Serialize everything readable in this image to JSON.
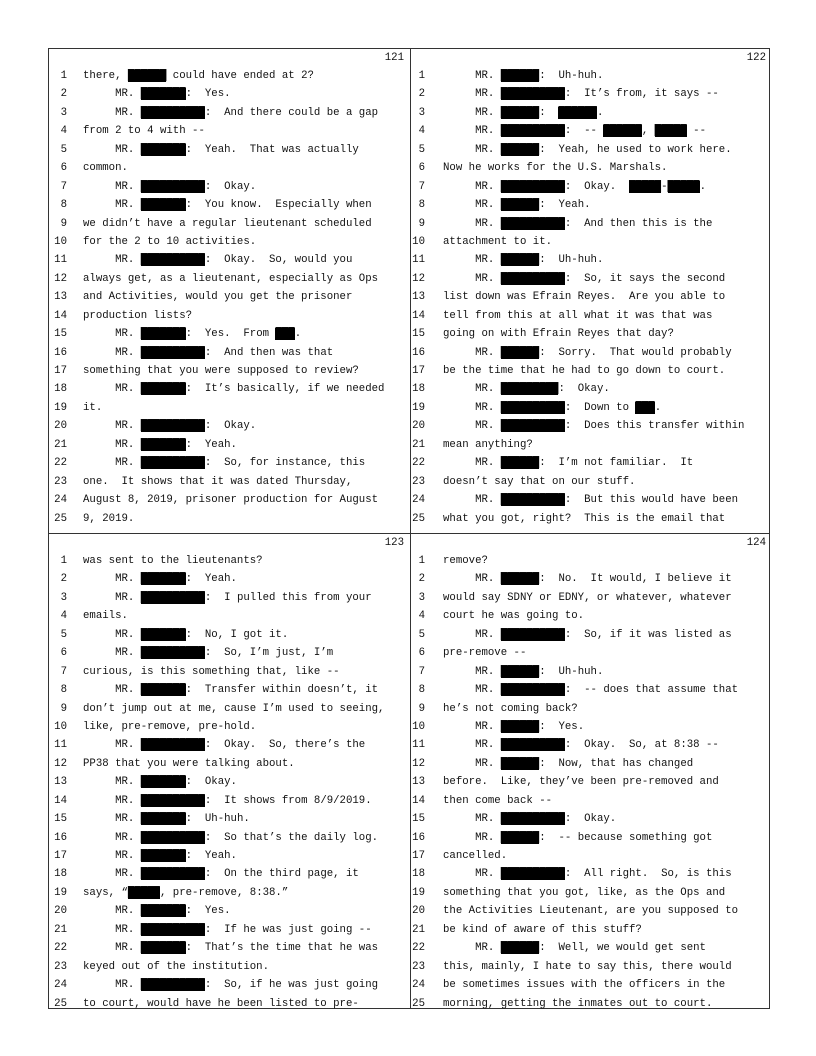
{
  "pages": [
    {
      "number": "121",
      "lines": [
        "there, ██████ could have ended at 2?",
        "     MR. ███████:  Yes.",
        "     MR. ██████████:  And there could be a gap",
        "from 2 to 4 with --",
        "     MR. ███████:  Yeah.  That was actually",
        "common.",
        "     MR. ██████████:  Okay.",
        "     MR. ███████:  You know.  Especially when",
        "we didn’t have a regular lieutenant scheduled",
        "for the 2 to 10 activities.",
        "     MR. ██████████:  Okay.  So, would you",
        "always get, as a lieutenant, especially as Ops",
        "and Activities, would you get the prisoner",
        "production lists?",
        "     MR. ███████:  Yes.  From ███.",
        "     MR. ██████████:  And then was that",
        "something that you were supposed to review?",
        "     MR. ███████:  It’s basically, if we needed",
        "it.",
        "     MR. ██████████:  Okay.",
        "     MR. ███████:  Yeah.",
        "     MR. ██████████:  So, for instance, this",
        "one.  It shows that it was dated Thursday,",
        "August 8, 2019, prisoner production for August",
        "9, 2019."
      ]
    },
    {
      "number": "122",
      "lines": [
        "     MR. ██████:  Uh-huh.",
        "     MR. ██████████:  It’s from, it says --",
        "     MR. ██████:  ██████.",
        "     MR. ██████████:  -- ██████, █████ --",
        "     MR. ██████:  Yeah, he used to work here.",
        "Now he works for the U.S. Marshals.",
        "     MR. ██████████:  Okay.  █████-█████.",
        "     MR. ██████:  Yeah.",
        "     MR. ██████████:  And then this is the",
        "attachment to it.",
        "     MR. ██████:  Uh-huh.",
        "     MR. ██████████:  So, it says the second",
        "list down was Efrain Reyes.  Are you able to",
        "tell from this at all what it was that was",
        "going on with Efrain Reyes that day?",
        "     MR. ██████:  Sorry.  That would probably",
        "be the time that he had to go down to court.",
        "     MR. █████████:  Okay.",
        "     MR. ██████████:  Down to ███.",
        "     MR. ██████████:  Does this transfer within",
        "mean anything?",
        "     MR. ██████:  I’m not familiar.  It",
        "doesn’t say that on our stuff.",
        "     MR. ██████████:  But this would have been",
        "what you got, right?  This is the email that"
      ]
    },
    {
      "number": "123",
      "lines": [
        "was sent to the lieutenants?",
        "     MR. ███████:  Yeah.",
        "     MR. ██████████:  I pulled this from your",
        "emails.",
        "     MR. ███████:  No, I got it.",
        "     MR. ██████████:  So, I’m just, I’m",
        "curious, is this something that, like --",
        "     MR. ███████:  Transfer within doesn’t, it",
        "don’t jump out at me, cause I’m used to seeing,",
        "like, pre-remove, pre-hold.",
        "     MR. ██████████:  Okay.  So, there’s the",
        "PP38 that you were talking about.",
        "     MR. ███████:  Okay.",
        "     MR. ██████████:  It shows from 8/9/2019.",
        "     MR. ███████:  Uh-huh.",
        "     MR. ██████████:  So that’s the daily log.",
        "     MR. ███████:  Yeah.",
        "     MR. ██████████:  On the third page, it",
        "says, “█████, pre-remove, 8:38.”",
        "     MR. ███████:  Yes.",
        "     MR. ██████████:  If he was just going --",
        "     MR. ███████:  That’s the time that he was",
        "keyed out of the institution.",
        "     MR. ██████████:  So, if he was just going",
        "to court, would have he been listed to pre-"
      ]
    },
    {
      "number": "124",
      "lines": [
        "remove?",
        "     MR. ██████:  No.  It would, I believe it",
        "would say SDNY or EDNY, or whatever, whatever",
        "court he was going to.",
        "     MR. ██████████:  So, if it was listed as",
        "pre-remove --",
        "     MR. ██████:  Uh-huh.",
        "     MR. ██████████:  -- does that assume that",
        "he’s not coming back?",
        "     MR. ██████:  Yes.",
        "     MR. ██████████:  Okay.  So, at 8:38 --",
        "     MR. ██████:  Now, that has changed",
        "before.  Like, they’ve been pre-removed and",
        "then come back --",
        "     MR. ██████████:  Okay.",
        "     MR. ██████:  -- because something got",
        "cancelled.",
        "     MR. ██████████:  All right.  So, is this",
        "something that you got, like, as the Ops and",
        "the Activities Lieutenant, are you supposed to",
        "be kind of aware of this stuff?",
        "     MR. ██████:  Well, we would get sent",
        "this, mainly, I hate to say this, there would",
        "be sometimes issues with the officers in the",
        "morning, getting the inmates out to court."
      ]
    }
  ]
}
